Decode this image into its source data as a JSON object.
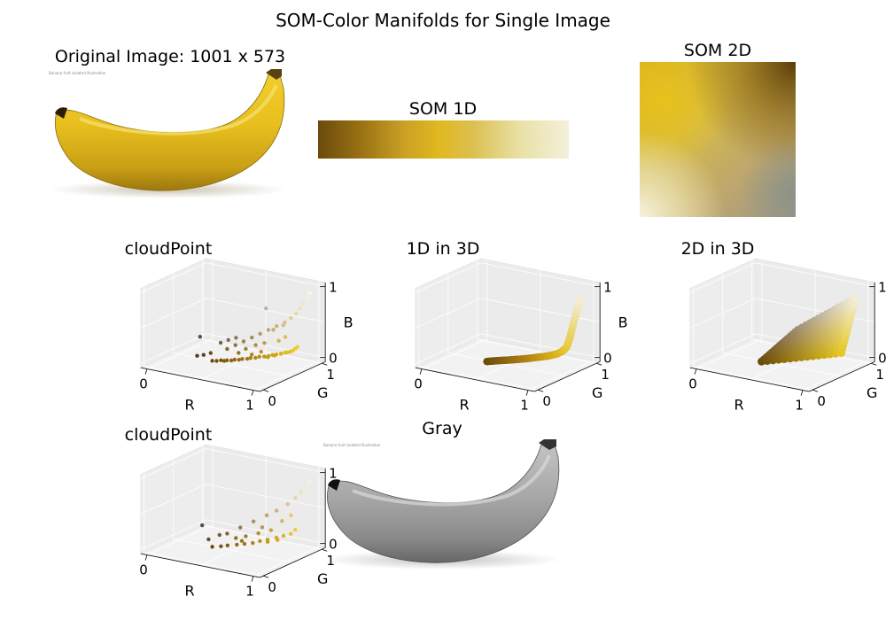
{
  "figure": {
    "title": "SOM-Color Manifolds for Single Image"
  },
  "panels": {
    "original": {
      "title": "Original Image: 1001 x 573",
      "watermark": "Banana fruit isolated illustration"
    },
    "som1d": {
      "title": "SOM 1D"
    },
    "som2d": {
      "title": "SOM 2D"
    },
    "cloud1": {
      "title": "cloudPoint"
    },
    "d1in3d": {
      "title": "1D in 3D"
    },
    "d2in3d": {
      "title": "2D in 3D"
    },
    "cloud2": {
      "title": "cloudPoint"
    },
    "gray": {
      "title": "Gray",
      "watermark": "Banana fruit isolated illustration"
    }
  },
  "colors": {
    "dark_brown": "#6b4a0c",
    "brown": "#9c7414",
    "gold": "#d4a820",
    "yellow": "#e6c52a",
    "light_yellow": "#f0d878",
    "cream": "#f2eed8",
    "pane": "#f2f2f2"
  },
  "chart_data": [
    {
      "type": "scatter",
      "panel": "cloudPoint",
      "x_label": "R",
      "y_label": "G",
      "z_label": "B",
      "x_ticks": [
        "0",
        "1"
      ],
      "y_ticks": [
        "0",
        "1"
      ],
      "z_ticks": [
        "0",
        "1"
      ],
      "xlim": [
        0,
        1
      ],
      "ylim": [
        0,
        1
      ],
      "zlim": [
        0,
        1
      ],
      "points_rgb": [
        [
          0.42,
          0.29,
          0.05
        ],
        [
          0.45,
          0.31,
          0.05
        ],
        [
          0.48,
          0.33,
          0.06
        ],
        [
          0.5,
          0.35,
          0.05
        ],
        [
          0.52,
          0.36,
          0.06
        ],
        [
          0.55,
          0.38,
          0.06
        ],
        [
          0.57,
          0.4,
          0.07
        ],
        [
          0.6,
          0.42,
          0.07
        ],
        [
          0.62,
          0.44,
          0.08
        ],
        [
          0.65,
          0.47,
          0.08
        ],
        [
          0.67,
          0.49,
          0.09
        ],
        [
          0.7,
          0.52,
          0.09
        ],
        [
          0.72,
          0.55,
          0.1
        ],
        [
          0.75,
          0.58,
          0.1
        ],
        [
          0.78,
          0.6,
          0.11
        ],
        [
          0.8,
          0.63,
          0.12
        ],
        [
          0.82,
          0.66,
          0.12
        ],
        [
          0.85,
          0.69,
          0.13
        ],
        [
          0.87,
          0.72,
          0.14
        ],
        [
          0.9,
          0.75,
          0.15
        ],
        [
          0.91,
          0.78,
          0.16
        ],
        [
          0.92,
          0.8,
          0.18
        ],
        [
          0.93,
          0.82,
          0.2
        ],
        [
          0.5,
          0.4,
          0.2
        ],
        [
          0.55,
          0.45,
          0.25
        ],
        [
          0.6,
          0.5,
          0.3
        ],
        [
          0.65,
          0.55,
          0.35
        ],
        [
          0.7,
          0.6,
          0.4
        ],
        [
          0.75,
          0.65,
          0.45
        ],
        [
          0.8,
          0.7,
          0.5
        ],
        [
          0.85,
          0.75,
          0.55
        ],
        [
          0.88,
          0.8,
          0.6
        ],
        [
          0.9,
          0.85,
          0.65
        ],
        [
          0.92,
          0.88,
          0.72
        ],
        [
          0.94,
          0.9,
          0.78
        ],
        [
          0.95,
          0.92,
          0.84
        ],
        [
          0.96,
          0.94,
          0.88
        ],
        [
          0.97,
          0.96,
          0.92
        ],
        [
          0.4,
          0.3,
          0.15
        ],
        [
          0.35,
          0.27,
          0.12
        ],
        [
          0.3,
          0.25,
          0.1
        ],
        [
          0.45,
          0.38,
          0.28
        ],
        [
          0.62,
          0.5,
          0.2
        ],
        [
          0.68,
          0.56,
          0.25
        ],
        [
          0.74,
          0.6,
          0.28
        ],
        [
          0.58,
          0.45,
          0.15
        ],
        [
          0.66,
          0.53,
          0.12
        ],
        [
          0.72,
          0.58,
          0.16
        ],
        [
          0.82,
          0.7,
          0.3
        ],
        [
          0.86,
          0.74,
          0.35
        ],
        [
          0.78,
          0.68,
          0.45
        ],
        [
          0.83,
          0.76,
          0.5
        ],
        [
          0.5,
          0.42,
          0.32
        ],
        [
          0.55,
          0.46,
          0.35
        ],
        [
          0.3,
          0.3,
          0.35
        ],
        [
          0.7,
          0.7,
          0.72
        ],
        [
          0.76,
          0.62,
          0.08
        ],
        [
          0.8,
          0.66,
          0.1
        ],
        [
          0.84,
          0.7,
          0.12
        ],
        [
          0.88,
          0.74,
          0.14
        ]
      ]
    },
    {
      "type": "line",
      "panel": "1D in 3D",
      "x_label": "R",
      "y_label": "G",
      "z_label": "B",
      "x_ticks": [
        "0",
        "1"
      ],
      "y_ticks": [
        "0",
        "1"
      ],
      "z_ticks": [
        "0",
        "1"
      ],
      "xlim": [
        0,
        1
      ],
      "ylim": [
        0,
        1
      ],
      "zlim": [
        0,
        1
      ],
      "curve_rgb": [
        [
          0.42,
          0.29,
          0.04
        ],
        [
          0.48,
          0.34,
          0.05
        ],
        [
          0.55,
          0.39,
          0.06
        ],
        [
          0.62,
          0.45,
          0.07
        ],
        [
          0.68,
          0.5,
          0.08
        ],
        [
          0.74,
          0.57,
          0.09
        ],
        [
          0.8,
          0.64,
          0.1
        ],
        [
          0.85,
          0.7,
          0.12
        ],
        [
          0.88,
          0.74,
          0.15
        ],
        [
          0.9,
          0.78,
          0.2
        ],
        [
          0.91,
          0.81,
          0.3
        ],
        [
          0.92,
          0.84,
          0.45
        ],
        [
          0.93,
          0.87,
          0.6
        ],
        [
          0.94,
          0.9,
          0.72
        ],
        [
          0.95,
          0.93,
          0.84
        ]
      ]
    },
    {
      "type": "scatter",
      "panel": "2D in 3D",
      "x_label": "R",
      "y_label": "G",
      "z_label": "B",
      "x_ticks": [
        "0",
        "1"
      ],
      "y_ticks": [
        "0",
        "1"
      ],
      "z_ticks": [
        "0",
        "1"
      ],
      "xlim": [
        0,
        1
      ],
      "ylim": [
        0,
        1
      ],
      "zlim": [
        0,
        1
      ],
      "corners_rgb": [
        [
          0.42,
          0.29,
          0.04
        ],
        [
          0.9,
          0.78,
          0.12
        ],
        [
          0.62,
          0.55,
          0.45
        ],
        [
          0.95,
          0.93,
          0.85
        ]
      ]
    },
    {
      "type": "scatter",
      "panel": "cloudPoint",
      "x_label": "R",
      "y_label": "G",
      "z_label": "B",
      "x_ticks": [
        "0",
        "1"
      ],
      "y_ticks": [
        "0",
        "1"
      ],
      "z_ticks": [
        "0",
        "1"
      ],
      "xlim": [
        0,
        1
      ],
      "ylim": [
        0,
        1
      ],
      "zlim": [
        0,
        1
      ],
      "points_rgb": [
        [
          0.42,
          0.29,
          0.05
        ],
        [
          0.48,
          0.33,
          0.06
        ],
        [
          0.52,
          0.37,
          0.07
        ],
        [
          0.58,
          0.42,
          0.08
        ],
        [
          0.63,
          0.46,
          0.09
        ],
        [
          0.68,
          0.51,
          0.1
        ],
        [
          0.72,
          0.56,
          0.12
        ],
        [
          0.77,
          0.6,
          0.14
        ],
        [
          0.82,
          0.66,
          0.16
        ],
        [
          0.86,
          0.71,
          0.18
        ],
        [
          0.9,
          0.76,
          0.2
        ],
        [
          0.92,
          0.8,
          0.25
        ],
        [
          0.5,
          0.4,
          0.22
        ],
        [
          0.58,
          0.48,
          0.3
        ],
        [
          0.66,
          0.56,
          0.38
        ],
        [
          0.74,
          0.64,
          0.46
        ],
        [
          0.8,
          0.7,
          0.52
        ],
        [
          0.86,
          0.78,
          0.6
        ],
        [
          0.9,
          0.84,
          0.68
        ],
        [
          0.93,
          0.88,
          0.75
        ],
        [
          0.95,
          0.92,
          0.82
        ],
        [
          0.97,
          0.95,
          0.9
        ],
        [
          0.38,
          0.3,
          0.14
        ],
        [
          0.45,
          0.36,
          0.2
        ],
        [
          0.62,
          0.5,
          0.18
        ],
        [
          0.7,
          0.57,
          0.22
        ],
        [
          0.78,
          0.64,
          0.26
        ],
        [
          0.6,
          0.47,
          0.12
        ],
        [
          0.72,
          0.6,
          0.3
        ],
        [
          0.84,
          0.72,
          0.38
        ],
        [
          0.32,
          0.3,
          0.32
        ],
        [
          0.88,
          0.8,
          0.44
        ],
        [
          0.76,
          0.62,
          0.1
        ],
        [
          0.82,
          0.68,
          0.12
        ],
        [
          0.56,
          0.44,
          0.16
        ]
      ]
    }
  ]
}
